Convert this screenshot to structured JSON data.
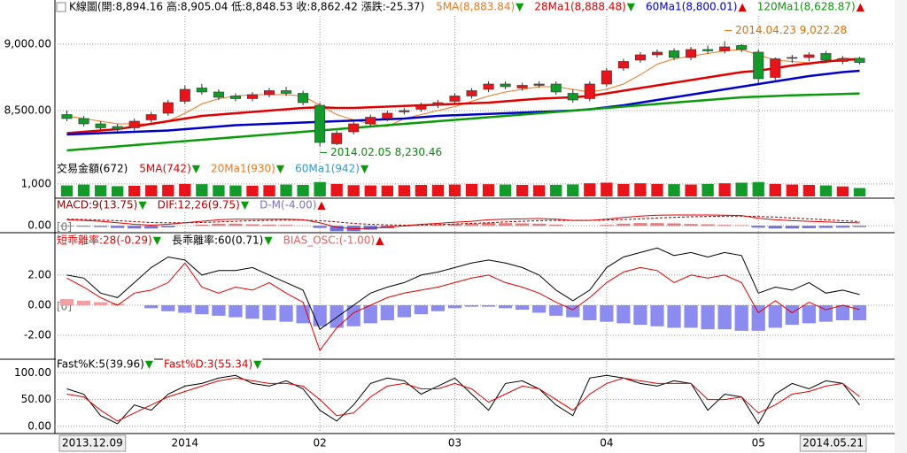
{
  "chart_data": [
    {
      "type": "candlestick",
      "header": [
        {
          "text": "K線圖(開:8,894.16 高:8,905.04 低:8,848.53 收:8,862.42 漲跌:-25.37)",
          "color": "#000000"
        },
        {
          "text": "5MA(8,883.84)",
          "color": "#f07820",
          "arrow": "▼",
          "arrow_color": "#0a9a0a"
        },
        {
          "text": "28Ma1(8,888.48)",
          "color": "#e00000",
          "arrow": "▼",
          "arrow_color": "#0a9a0a"
        },
        {
          "text": "60Ma1(8,800.01)",
          "color": "#0000c8",
          "arrow": "▲",
          "arrow_color": "#e00000"
        },
        {
          "text": "120Ma1(8,628.87)",
          "color": "#0a9a0a",
          "arrow": "▲",
          "arrow_color": "#e00000"
        }
      ],
      "open": [
        8470,
        8440,
        8400,
        8380,
        8370,
        8430,
        8480,
        8570,
        8670,
        8640,
        8610,
        8590,
        8620,
        8650,
        8630,
        8540,
        8250,
        8340,
        8400,
        8440,
        8490,
        8510,
        8540,
        8570,
        8610,
        8660,
        8700,
        8670,
        8690,
        8700,
        8630,
        8590,
        8700,
        8820,
        8880,
        8920,
        8950,
        8900,
        8960,
        8950,
        8990,
        8940,
        8750,
        8900,
        8900,
        8930,
        8870,
        8894.16
      ],
      "high": [
        8500,
        8460,
        8420,
        8400,
        8440,
        8490,
        8580,
        8690,
        8700,
        8660,
        8630,
        8640,
        8670,
        8680,
        8650,
        8560,
        8350,
        8420,
        8470,
        8500,
        8520,
        8560,
        8580,
        8630,
        8670,
        8720,
        8720,
        8710,
        8720,
        8720,
        8660,
        8720,
        8820,
        8890,
        8940,
        8960,
        8970,
        8980,
        8990,
        9022.28,
        9000,
        8960,
        8900,
        8920,
        8940,
        8950,
        8910,
        8905.04
      ],
      "low": [
        8420,
        8380,
        8350,
        8340,
        8350,
        8410,
        8460,
        8550,
        8620,
        8580,
        8570,
        8570,
        8600,
        8610,
        8540,
        8230.46,
        8240,
        8320,
        8380,
        8420,
        8470,
        8490,
        8520,
        8550,
        8590,
        8640,
        8660,
        8650,
        8670,
        8620,
        8560,
        8570,
        8680,
        8800,
        8860,
        8900,
        8880,
        8880,
        8930,
        8930,
        8940,
        8710,
        8730,
        8860,
        8870,
        8860,
        8850,
        8848.53
      ],
      "close": [
        8440,
        8400,
        8370,
        8360,
        8420,
        8470,
        8560,
        8660,
        8640,
        8600,
        8590,
        8620,
        8650,
        8630,
        8560,
        8260,
        8330,
        8400,
        8450,
        8480,
        8500,
        8540,
        8560,
        8610,
        8650,
        8700,
        8680,
        8690,
        8700,
        8640,
        8580,
        8700,
        8800,
        8870,
        8920,
        8940,
        8900,
        8960,
        8950,
        8980,
        8960,
        8740,
        8890,
        8900,
        8920,
        8880,
        8890,
        8862.42
      ],
      "up_color": "#e8141a",
      "down_color": "#129a2b",
      "series": [
        {
          "color": "#f07820",
          "width": 1,
          "values": [
            8460,
            8440,
            8420,
            8400,
            8400,
            8400,
            8420,
            8480,
            8550,
            8590,
            8610,
            8620,
            8620,
            8620,
            8610,
            8540,
            8470,
            8430,
            8400,
            8380,
            8440,
            8470,
            8500,
            8530,
            8570,
            8610,
            8640,
            8660,
            8680,
            8680,
            8660,
            8640,
            8660,
            8700,
            8770,
            8850,
            8890,
            8910,
            8930,
            8950,
            8960,
            8920,
            8880,
            8870,
            8860,
            8860,
            8900,
            8883.84
          ]
        },
        {
          "color": "#e00000",
          "width": 2.5,
          "values": [
            8330,
            8340,
            8350,
            8360,
            8380,
            8400,
            8420,
            8440,
            8460,
            8470,
            8480,
            8490,
            8500,
            8510,
            8520,
            8525,
            8520,
            8520,
            8525,
            8530,
            8535,
            8540,
            8545,
            8550,
            8555,
            8560,
            8570,
            8580,
            8590,
            8595,
            8600,
            8610,
            8630,
            8650,
            8670,
            8690,
            8710,
            8730,
            8750,
            8770,
            8790,
            8800,
            8820,
            8840,
            8855,
            8870,
            8880,
            8888.48
          ]
        },
        {
          "color": "#0000c8",
          "width": 2.5,
          "values": [
            8320,
            8325,
            8330,
            8335,
            8340,
            8345,
            8350,
            8360,
            8370,
            8380,
            8390,
            8395,
            8400,
            8405,
            8410,
            8415,
            8420,
            8425,
            8430,
            8435,
            8440,
            8450,
            8460,
            8465,
            8470,
            8475,
            8480,
            8485,
            8490,
            8495,
            8500,
            8510,
            8525,
            8540,
            8560,
            8580,
            8600,
            8620,
            8640,
            8660,
            8680,
            8700,
            8720,
            8740,
            8760,
            8775,
            8790,
            8800.01
          ]
        },
        {
          "color": "#0a9a0a",
          "width": 2.5,
          "values": [
            8200,
            8210,
            8220,
            8230,
            8240,
            8250,
            8260,
            8270,
            8280,
            8290,
            8300,
            8310,
            8320,
            8330,
            8340,
            8350,
            8360,
            8370,
            8380,
            8390,
            8400,
            8410,
            8420,
            8430,
            8440,
            8450,
            8460,
            8470,
            8480,
            8490,
            8500,
            8510,
            8520,
            8530,
            8540,
            8550,
            8560,
            8570,
            8580,
            8590,
            8600,
            8605,
            8610,
            8615,
            8618,
            8622,
            8625,
            8628.87
          ]
        }
      ],
      "annotations": [
        {
          "text": "2014.04.23  9,022.28",
          "color": "#e07000"
        },
        {
          "text": "2014.02.05  8,230.46",
          "color": "#0a8a0a"
        }
      ],
      "ylim": [
        8080,
        9213
      ],
      "yticks": [
        {
          "value": 8500,
          "label": "8,500.00"
        },
        {
          "value": 9000,
          "label": "9,000.00"
        }
      ],
      "grid": true
    },
    {
      "type": "bar",
      "header": [
        {
          "text": "交易金額(672)",
          "color": "#000000"
        },
        {
          "text": "5MA(742)",
          "color": "#e00000",
          "arrow": "▼",
          "arrow_color": "#0a9a0a"
        },
        {
          "text": "20Ma1(930)",
          "color": "#f07820",
          "arrow": "▼",
          "arrow_color": "#0a9a0a"
        },
        {
          "text": "60Ma1(942)",
          "color": "#3399cc",
          "arrow": "▼",
          "arrow_color": "#0a9a0a"
        }
      ],
      "values": [
        880,
        950,
        900,
        820,
        850,
        900,
        930,
        1000,
        980,
        900,
        880,
        860,
        900,
        950,
        920,
        1150,
        1000,
        900,
        880,
        870,
        900,
        920,
        930,
        950,
        1000,
        980,
        950,
        920,
        900,
        930,
        960,
        1050,
        1100,
        1000,
        1050,
        1000,
        980,
        950,
        1000,
        1050,
        1100,
        1150,
        1000,
        950,
        920,
        880,
        800,
        672
      ],
      "ylim": [
        0,
        1700
      ],
      "yticks": [
        {
          "value": 1000,
          "label": "1,000"
        }
      ],
      "grid": true
    },
    {
      "type": "line",
      "header": [
        {
          "text": "MACD:9(13.75)",
          "color": "#900000",
          "arrow": "▼",
          "arrow_color": "#0a9a0a"
        },
        {
          "text": "DIF:12,26(9.75)",
          "color": "#c00000",
          "arrow": "▼",
          "arrow_color": "#0a9a0a"
        },
        {
          "text": "D-M(-4.00)",
          "color": "#8070c0",
          "arrow": "▲",
          "arrow_color": "#e00000"
        }
      ],
      "zero_label": "[0]",
      "series": [
        {
          "color": "#900000",
          "width": 1,
          "dash": true,
          "values": [
            22,
            21,
            19,
            17,
            14,
            11,
            10,
            10,
            11,
            13,
            15,
            17,
            18,
            19,
            19,
            17,
            13,
            8,
            5,
            3,
            2,
            3,
            4,
            6,
            8,
            10,
            13,
            15,
            17,
            18,
            18,
            18,
            19,
            21,
            23,
            26,
            28,
            30,
            31,
            32,
            32,
            31,
            29,
            26,
            23,
            20,
            17,
            13.75
          ]
        },
        {
          "color": "#e00000",
          "width": 1,
          "values": [
            20,
            18,
            15,
            10,
            5,
            2,
            5,
            10,
            15,
            20,
            22,
            22,
            22,
            22,
            20,
            10,
            -5,
            -10,
            -8,
            -5,
            0,
            5,
            8,
            12,
            15,
            20,
            22,
            23,
            24,
            22,
            18,
            18,
            22,
            28,
            32,
            35,
            36,
            36,
            36,
            35,
            34,
            25,
            20,
            17,
            15,
            13,
            11,
            9.75
          ]
        }
      ],
      "bars": {
        "pos_color": "#e08080",
        "neg_color": "#7070e0",
        "values": [
          -2,
          -3,
          -4,
          -7,
          -9,
          -9,
          -5,
          0,
          4,
          7,
          7,
          5,
          4,
          3,
          1,
          -7,
          -18,
          -18,
          -13,
          -8,
          -2,
          2,
          4,
          6,
          7,
          10,
          9,
          8,
          7,
          4,
          0,
          0,
          3,
          7,
          9,
          9,
          8,
          6,
          5,
          3,
          2,
          -6,
          -9,
          -9,
          -8,
          -7,
          -6,
          -4.0
        ]
      },
      "ylim": [
        -20,
        80
      ],
      "yticks": [
        {
          "value": 0,
          "label": "0.00"
        }
      ],
      "grid": true
    },
    {
      "type": "line",
      "header": [
        {
          "text": "短乖離率:28(-0.29)",
          "color": "#e00000",
          "arrow": "▼",
          "arrow_color": "#0a9a0a"
        },
        {
          "text": "長乖離率:60(0.71)",
          "color": "#000000",
          "arrow": "▼",
          "arrow_color": "#0a9a0a"
        },
        {
          "text": "BIAS_OSC:(-1.00)",
          "color": "#e06060",
          "arrow": "▲",
          "arrow_color": "#e00000"
        }
      ],
      "zero_label": "[0]",
      "bars": {
        "pos_color": "#f0a0a0",
        "neg_color": "#8c8cf0",
        "values": [
          0.4,
          0.3,
          0.2,
          0.1,
          0,
          -0.2,
          -0.4,
          -0.5,
          -0.6,
          -0.7,
          -0.8,
          -0.9,
          -1.0,
          -1.1,
          -1.2,
          -1.4,
          -1.5,
          -1.4,
          -1.2,
          -1.0,
          -0.8,
          -0.6,
          -0.4,
          -0.2,
          -0.1,
          -0.1,
          -0.2,
          -0.3,
          -0.5,
          -0.7,
          -0.8,
          -1.0,
          -1.1,
          -1.2,
          -1.3,
          -1.4,
          -1.5,
          -1.5,
          -1.6,
          -1.6,
          -1.7,
          -1.7,
          -1.5,
          -1.3,
          -1.2,
          -1.1,
          -1.0,
          -1.0
        ]
      },
      "series": [
        {
          "color": "#000000",
          "width": 1,
          "values": [
            2.0,
            1.8,
            0.8,
            0.5,
            1.5,
            2.5,
            3.2,
            3.0,
            2.0,
            2.3,
            2.3,
            2.5,
            2.0,
            1.5,
            1.0,
            -1.6,
            -0.8,
            0,
            0.8,
            1.2,
            1.5,
            2.0,
            2.2,
            2.5,
            2.8,
            3.0,
            2.8,
            2.5,
            2.0,
            1.0,
            0.3,
            1.0,
            2.5,
            3.2,
            3.5,
            3.8,
            3.3,
            3.5,
            3.2,
            3.5,
            3.3,
            0.8,
            1.2,
            1.0,
            1.5,
            0.8,
            1.0,
            0.71
          ]
        },
        {
          "color": "#e00000",
          "width": 1,
          "values": [
            1.8,
            1.2,
            0.5,
            0,
            0.8,
            1.0,
            1.5,
            2.8,
            1.2,
            0.8,
            1.2,
            1.0,
            1.5,
            0.8,
            0.2,
            -3.0,
            -1.5,
            -0.5,
            0,
            0.5,
            0.8,
            1.0,
            1.2,
            1.5,
            1.8,
            2.0,
            1.5,
            1.2,
            0.8,
            0.2,
            -0.3,
            0.5,
            1.5,
            2.2,
            2.5,
            2.3,
            1.5,
            2.0,
            1.8,
            2.0,
            1.5,
            -0.5,
            0.3,
            -0.5,
            0.2,
            -0.3,
            0,
            -0.29
          ]
        }
      ],
      "ylim": [
        -3.47,
        3.7
      ],
      "yticks": [
        {
          "value": 2,
          "label": "2.00"
        },
        {
          "value": 0,
          "label": "0.00"
        },
        {
          "value": -2,
          "label": "-2.00"
        }
      ],
      "grid": true
    },
    {
      "type": "line",
      "header": [
        {
          "text": "Fast%K:5(39.96)",
          "color": "#000000",
          "arrow": "▼",
          "arrow_color": "#0a9a0a"
        },
        {
          "text": "Fast%D:3(55.34)",
          "color": "#e00000",
          "arrow": "▼",
          "arrow_color": "#0a9a0a"
        }
      ],
      "categories": [
        "2013.12.09",
        null,
        null,
        null,
        null,
        null,
        null,
        "2014",
        null,
        null,
        null,
        null,
        null,
        null,
        null,
        "02",
        null,
        null,
        null,
        null,
        null,
        null,
        null,
        "03",
        null,
        null,
        null,
        null,
        null,
        null,
        null,
        null,
        "04",
        null,
        null,
        null,
        null,
        null,
        null,
        null,
        null,
        "05",
        null,
        null,
        null,
        null,
        null,
        "2014.05.21"
      ],
      "series": [
        {
          "color": "#000000",
          "width": 1,
          "values": [
            70,
            60,
            20,
            5,
            40,
            30,
            60,
            75,
            80,
            90,
            95,
            80,
            75,
            85,
            70,
            30,
            10,
            40,
            80,
            90,
            85,
            60,
            75,
            90,
            60,
            30,
            80,
            85,
            70,
            40,
            20,
            90,
            95,
            90,
            80,
            75,
            85,
            80,
            30,
            60,
            55,
            5,
            60,
            80,
            70,
            85,
            80,
            39.96
          ]
        },
        {
          "color": "#e00000",
          "width": 1,
          "values": [
            60,
            55,
            30,
            10,
            25,
            40,
            55,
            65,
            75,
            85,
            90,
            85,
            80,
            80,
            75,
            50,
            20,
            25,
            55,
            75,
            80,
            70,
            70,
            80,
            70,
            45,
            60,
            75,
            70,
            50,
            30,
            60,
            80,
            90,
            85,
            80,
            80,
            80,
            50,
            50,
            55,
            25,
            40,
            60,
            65,
            75,
            80,
            55.34
          ]
        }
      ],
      "ylim": [
        -10,
        112
      ],
      "yticks": [
        {
          "value": 100,
          "label": "100.00"
        },
        {
          "value": 50,
          "label": "50.00"
        },
        {
          "value": 0,
          "label": "0.00"
        }
      ],
      "grid": true
    }
  ]
}
